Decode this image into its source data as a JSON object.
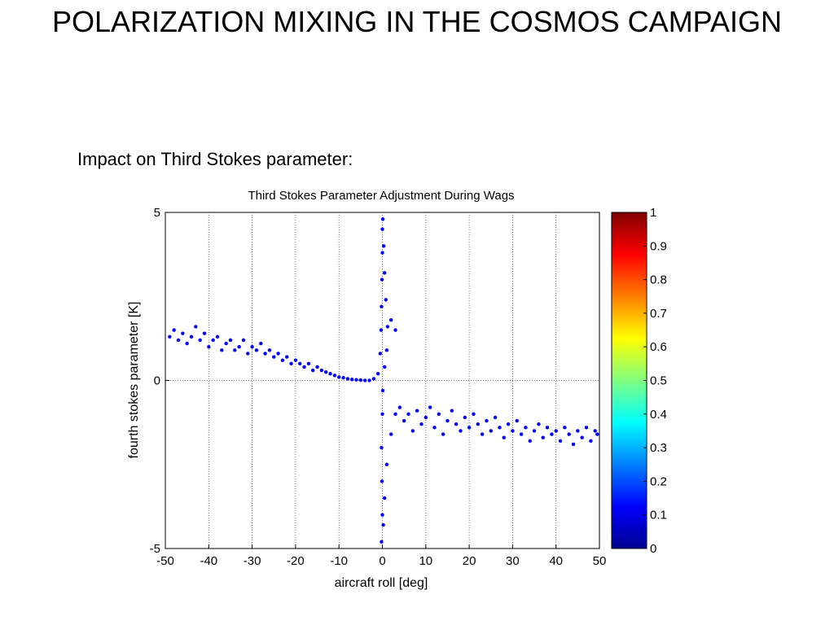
{
  "slide": {
    "title": "POLARIZATION MIXING IN THE COSMOS CAMPAIGN",
    "subtitle": "Impact on Third Stokes parameter:"
  },
  "chart_data": {
    "type": "scatter",
    "title": "Third Stokes Parameter Adjustment During Wags",
    "xlabel": "aircraft roll [deg]",
    "ylabel": "fourth stokes parameter [K]",
    "xlim": [
      -50,
      50
    ],
    "ylim": [
      -5,
      5
    ],
    "xticks": [
      -50,
      -40,
      -30,
      -20,
      -10,
      0,
      10,
      20,
      30,
      40,
      50
    ],
    "yticks": [
      -5,
      0,
      5
    ],
    "grid": true,
    "point_color": "#0000ff",
    "colorbar": {
      "range": [
        0,
        1
      ],
      "ticks": [
        "0",
        "0.1",
        "0.2",
        "0.3",
        "0.4",
        "0.5",
        "0.6",
        "0.7",
        "0.8",
        "0.9",
        "1"
      ],
      "colormap": "jet"
    },
    "series": [
      {
        "values": [
          [
            -49,
            1.3
          ],
          [
            -48,
            1.5
          ],
          [
            -47,
            1.2
          ],
          [
            -46,
            1.4
          ],
          [
            -45,
            1.1
          ],
          [
            -44,
            1.3
          ],
          [
            -43,
            1.6
          ],
          [
            -42,
            1.2
          ],
          [
            -41,
            1.4
          ],
          [
            -40,
            1.0
          ],
          [
            -39,
            1.2
          ],
          [
            -38,
            1.3
          ],
          [
            -37,
            0.9
          ],
          [
            -36,
            1.1
          ],
          [
            -35,
            1.2
          ],
          [
            -34,
            0.9
          ],
          [
            -33,
            1.0
          ],
          [
            -32,
            1.2
          ],
          [
            -31,
            0.8
          ],
          [
            -30,
            1.0
          ],
          [
            -29,
            0.9
          ],
          [
            -28,
            1.1
          ],
          [
            -27,
            0.8
          ],
          [
            -26,
            0.9
          ],
          [
            -25,
            0.7
          ],
          [
            -24,
            0.8
          ],
          [
            -23,
            0.6
          ],
          [
            -22,
            0.7
          ],
          [
            -21,
            0.5
          ],
          [
            -20,
            0.6
          ],
          [
            -19,
            0.5
          ],
          [
            -18,
            0.4
          ],
          [
            -17,
            0.5
          ],
          [
            -16,
            0.3
          ],
          [
            -15,
            0.4
          ],
          [
            -14,
            0.3
          ],
          [
            -13,
            0.25
          ],
          [
            -12,
            0.2
          ],
          [
            -11,
            0.15
          ],
          [
            -10,
            0.1
          ],
          [
            -9,
            0.08
          ],
          [
            -8,
            0.05
          ],
          [
            -7,
            0.03
          ],
          [
            -6,
            0.02
          ],
          [
            -5,
            0.01
          ],
          [
            -4,
            0.0
          ],
          [
            -3,
            0.0
          ],
          [
            -2,
            0.05
          ],
          [
            -1,
            0.2
          ],
          [
            -0.5,
            0.8
          ],
          [
            -0.3,
            1.5
          ],
          [
            -0.2,
            2.2
          ],
          [
            -0.1,
            3.0
          ],
          [
            0,
            3.8
          ],
          [
            0,
            4.5
          ],
          [
            0.1,
            4.8
          ],
          [
            0.3,
            4.0
          ],
          [
            0.5,
            3.2
          ],
          [
            0.8,
            2.4
          ],
          [
            1.2,
            1.6
          ],
          [
            2,
            1.8
          ],
          [
            3,
            1.5
          ],
          [
            1,
            0.9
          ],
          [
            0.5,
            0.4
          ],
          [
            0.1,
            -0.3
          ],
          [
            0,
            -1.0
          ],
          [
            -0.2,
            -2.0
          ],
          [
            -0.1,
            -3.0
          ],
          [
            0,
            -4.0
          ],
          [
            -0.2,
            -4.8
          ],
          [
            0.2,
            -4.3
          ],
          [
            0.5,
            -3.5
          ],
          [
            1,
            -2.5
          ],
          [
            2,
            -1.6
          ],
          [
            3,
            -1.0
          ],
          [
            4,
            -0.8
          ],
          [
            5,
            -1.2
          ],
          [
            6,
            -1.0
          ],
          [
            7,
            -1.5
          ],
          [
            8,
            -0.9
          ],
          [
            9,
            -1.3
          ],
          [
            10,
            -1.1
          ],
          [
            11,
            -0.8
          ],
          [
            12,
            -1.4
          ],
          [
            13,
            -1.0
          ],
          [
            14,
            -1.6
          ],
          [
            15,
            -1.2
          ],
          [
            16,
            -0.9
          ],
          [
            17,
            -1.3
          ],
          [
            18,
            -1.5
          ],
          [
            19,
            -1.1
          ],
          [
            20,
            -1.4
          ],
          [
            21,
            -1.0
          ],
          [
            22,
            -1.3
          ],
          [
            23,
            -1.6
          ],
          [
            24,
            -1.2
          ],
          [
            25,
            -1.5
          ],
          [
            26,
            -1.1
          ],
          [
            27,
            -1.4
          ],
          [
            28,
            -1.7
          ],
          [
            29,
            -1.3
          ],
          [
            30,
            -1.5
          ],
          [
            31,
            -1.2
          ],
          [
            32,
            -1.6
          ],
          [
            33,
            -1.4
          ],
          [
            34,
            -1.8
          ],
          [
            35,
            -1.5
          ],
          [
            36,
            -1.3
          ],
          [
            37,
            -1.7
          ],
          [
            38,
            -1.4
          ],
          [
            39,
            -1.6
          ],
          [
            40,
            -1.5
          ],
          [
            41,
            -1.8
          ],
          [
            42,
            -1.4
          ],
          [
            43,
            -1.6
          ],
          [
            44,
            -1.9
          ],
          [
            45,
            -1.5
          ],
          [
            46,
            -1.7
          ],
          [
            47,
            -1.4
          ],
          [
            48,
            -1.8
          ],
          [
            49,
            -1.5
          ],
          [
            49.5,
            -1.6
          ]
        ]
      }
    ]
  }
}
